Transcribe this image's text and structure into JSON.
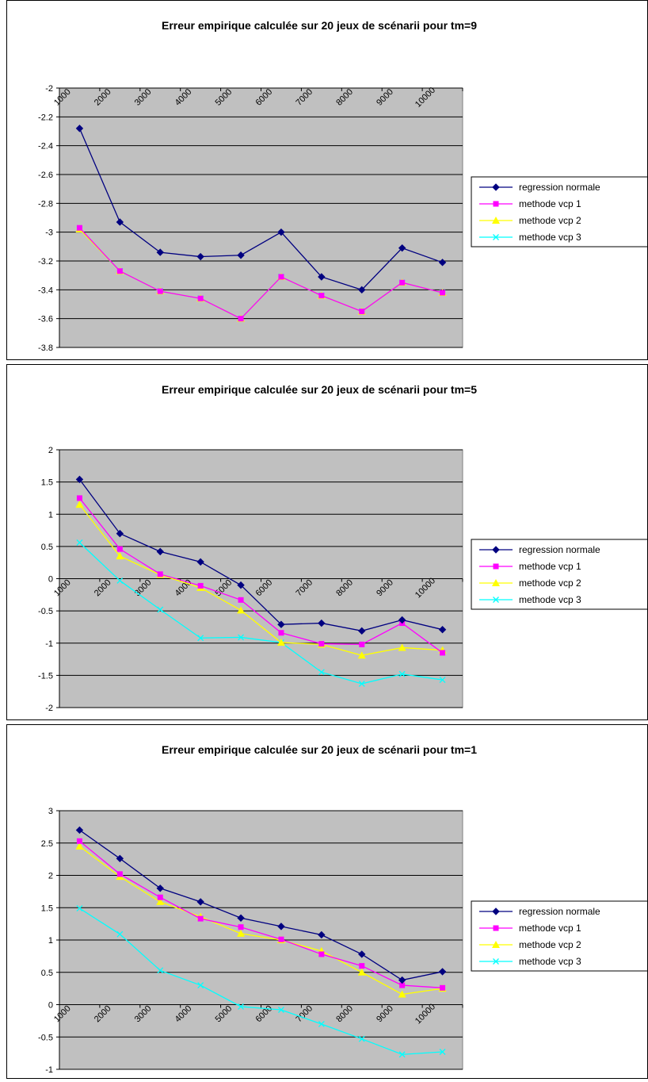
{
  "colors": {
    "plot_bg": "#c0c0c0",
    "grid": "#000000",
    "series": [
      "#000080",
      "#ff00ff",
      "#ffff00",
      "#00ffff"
    ]
  },
  "chart_data": [
    {
      "type": "line",
      "title": "Erreur empirique calculée sur 20 jeux de scénarii pour tm=9",
      "categories": [
        "1000",
        "2000",
        "3000",
        "4000",
        "5000",
        "6000",
        "7000",
        "8000",
        "9000",
        "10000"
      ],
      "ylim": [
        -3.8,
        -2
      ],
      "yticks": [
        "-2",
        "-2.2",
        "-2.4",
        "-2.6",
        "-2.8",
        "-3",
        "-3.2",
        "-3.4",
        "-3.6",
        "-3.8"
      ],
      "grid": true,
      "legend_position": "right",
      "series": [
        {
          "name": "regression normale",
          "marker": "diamond",
          "values": [
            -2.28,
            -2.93,
            -3.14,
            -3.17,
            -3.16,
            -3.0,
            -3.31,
            -3.4,
            -3.11,
            -3.21
          ]
        },
        {
          "name": "methode vcp 1",
          "marker": "square",
          "values": [
            -2.97,
            -3.27,
            -3.41,
            -3.46,
            -3.6,
            -3.31,
            -3.44,
            -3.55,
            -3.35,
            -3.42
          ]
        },
        {
          "name": "methode vcp 2",
          "marker": "triangle",
          "values": [
            -2.98,
            -3.27,
            -3.41,
            -3.46,
            -3.6,
            -3.31,
            -3.44,
            -3.55,
            -3.35,
            -3.42
          ]
        },
        {
          "name": "methode vcp 3",
          "marker": "x",
          "values": [
            -2.98,
            -3.27,
            -3.41,
            -3.46,
            -3.6,
            -3.31,
            -3.44,
            -3.55,
            -3.35,
            -3.42
          ]
        }
      ]
    },
    {
      "type": "line",
      "title": "Erreur empirique calculée sur 20 jeux de scénarii pour tm=5",
      "categories": [
        "1000",
        "2000",
        "3000",
        "4000",
        "5000",
        "6000",
        "7000",
        "8000",
        "9000",
        "10000"
      ],
      "ylim": [
        -2,
        2
      ],
      "yticks": [
        "2",
        "1.5",
        "1",
        "0.5",
        "0",
        "-0.5",
        "-1",
        "-1.5",
        "-2"
      ],
      "grid": true,
      "legend_position": "right",
      "series": [
        {
          "name": "regression normale",
          "marker": "diamond",
          "values": [
            1.54,
            0.7,
            0.42,
            0.26,
            -0.1,
            -0.71,
            -0.69,
            -0.81,
            -0.64,
            -0.79
          ]
        },
        {
          "name": "methode vcp 1",
          "marker": "square",
          "values": [
            1.25,
            0.46,
            0.07,
            -0.11,
            -0.33,
            -0.84,
            -1.01,
            -1.02,
            -0.69,
            -1.15
          ]
        },
        {
          "name": "methode vcp 2",
          "marker": "triangle",
          "values": [
            1.15,
            0.35,
            0.06,
            -0.14,
            -0.49,
            -0.99,
            -1.02,
            -1.19,
            -1.07,
            -1.11
          ]
        },
        {
          "name": "methode vcp 3",
          "marker": "x",
          "values": [
            0.56,
            -0.03,
            -0.48,
            -0.92,
            -0.91,
            -0.99,
            -1.45,
            -1.63,
            -1.48,
            -1.57
          ]
        }
      ]
    },
    {
      "type": "line",
      "title": "Erreur empirique calculée sur 20 jeux de scénarii pour tm=1",
      "categories": [
        "1000",
        "2000",
        "3000",
        "4000",
        "5000",
        "6000",
        "7000",
        "8000",
        "9000",
        "10000"
      ],
      "ylim": [
        -1,
        3
      ],
      "yticks": [
        "3",
        "2.5",
        "2",
        "1.5",
        "1",
        "0.5",
        "0",
        "-0.5",
        "-1"
      ],
      "grid": true,
      "legend_position": "right",
      "series": [
        {
          "name": "regression normale",
          "marker": "diamond",
          "values": [
            2.7,
            2.26,
            1.8,
            1.59,
            1.34,
            1.21,
            1.08,
            0.78,
            0.38,
            0.51
          ]
        },
        {
          "name": "methode vcp 1",
          "marker": "square",
          "values": [
            2.53,
            2.02,
            1.66,
            1.33,
            1.2,
            1.01,
            0.78,
            0.6,
            0.3,
            0.26
          ]
        },
        {
          "name": "methode vcp 2",
          "marker": "triangle",
          "values": [
            2.45,
            1.98,
            1.59,
            1.36,
            1.1,
            1.0,
            0.83,
            0.5,
            0.16,
            0.25
          ]
        },
        {
          "name": "methode vcp 3",
          "marker": "x",
          "values": [
            1.49,
            1.09,
            0.53,
            0.3,
            -0.03,
            -0.08,
            -0.3,
            -0.53,
            -0.77,
            -0.73
          ]
        }
      ]
    }
  ]
}
